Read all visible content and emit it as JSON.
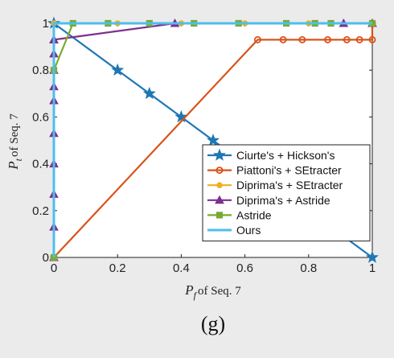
{
  "panel_label": "(g)",
  "chart_data": {
    "type": "line",
    "xlabel": {
      "main": "P",
      "sub": "f",
      "rest": "of Seq. 7"
    },
    "ylabel": {
      "main": "P",
      "sub": "t",
      "rest": "of Seq. 7"
    },
    "xlim": [
      0,
      1
    ],
    "ylim": [
      0,
      1
    ],
    "xticks": [
      0,
      0.2,
      0.4,
      0.6,
      0.8,
      1
    ],
    "yticks": [
      0,
      0.2,
      0.4,
      0.6,
      0.8,
      1
    ],
    "xtick_labels": [
      "0",
      "0.2",
      "0.4",
      "0.6",
      "0.8",
      "1"
    ],
    "ytick_labels": [
      "0",
      "0.2",
      "0.4",
      "0.6",
      "0.8",
      "1"
    ],
    "grid": false,
    "legend_position": "lower-right",
    "series": [
      {
        "name": "Ciurte's + Hickson's",
        "color": "#1f77b4",
        "marker": "star",
        "x": [
          0,
          0.2,
          0.3,
          0.4,
          0.5,
          1
        ],
        "y": [
          1,
          0.8,
          0.7,
          0.6,
          0.5,
          0
        ]
      },
      {
        "name": "Piattoni's + SEtracter",
        "color": "#d95319",
        "marker": "circle",
        "x": [
          0,
          0.64,
          0.72,
          0.78,
          0.86,
          0.92,
          0.96,
          1,
          1
        ],
        "y": [
          0,
          0.93,
          0.93,
          0.93,
          0.93,
          0.93,
          0.93,
          0.93,
          1
        ]
      },
      {
        "name": "Diprima's + SEtracter",
        "color": "#edb120",
        "marker": "dot",
        "x": [
          0,
          0,
          0.06,
          0.2,
          0.4,
          0.6,
          0.8,
          1
        ],
        "y": [
          0,
          1,
          1,
          1,
          1,
          1,
          1,
          1
        ]
      },
      {
        "name": "Diprima's + Astride",
        "color": "#7e2f8e",
        "marker": "triangle",
        "x": [
          0,
          0,
          0,
          0,
          0,
          0,
          0,
          0,
          0,
          0,
          0.38,
          0.91,
          1
        ],
        "y": [
          0,
          0.13,
          0.27,
          0.4,
          0.53,
          0.67,
          0.73,
          0.8,
          0.87,
          0.93,
          1,
          1,
          1
        ],
        "extra_x": [
          0
        ],
        "extra_y": [
          0.93
        ]
      },
      {
        "name": "Astride",
        "color": "#77ac30",
        "marker": "square",
        "x": [
          0,
          0,
          0.06,
          0.17,
          0.3,
          0.44,
          0.58,
          0.73,
          0.82,
          0.87,
          1
        ],
        "y": [
          0,
          0.8,
          1,
          1,
          1,
          1,
          1,
          1,
          1,
          1,
          1
        ]
      },
      {
        "name": "Ours",
        "color": "#4dbeee",
        "marker": "none",
        "x": [
          0,
          0,
          1
        ],
        "y": [
          0,
          1,
          1
        ]
      }
    ]
  }
}
